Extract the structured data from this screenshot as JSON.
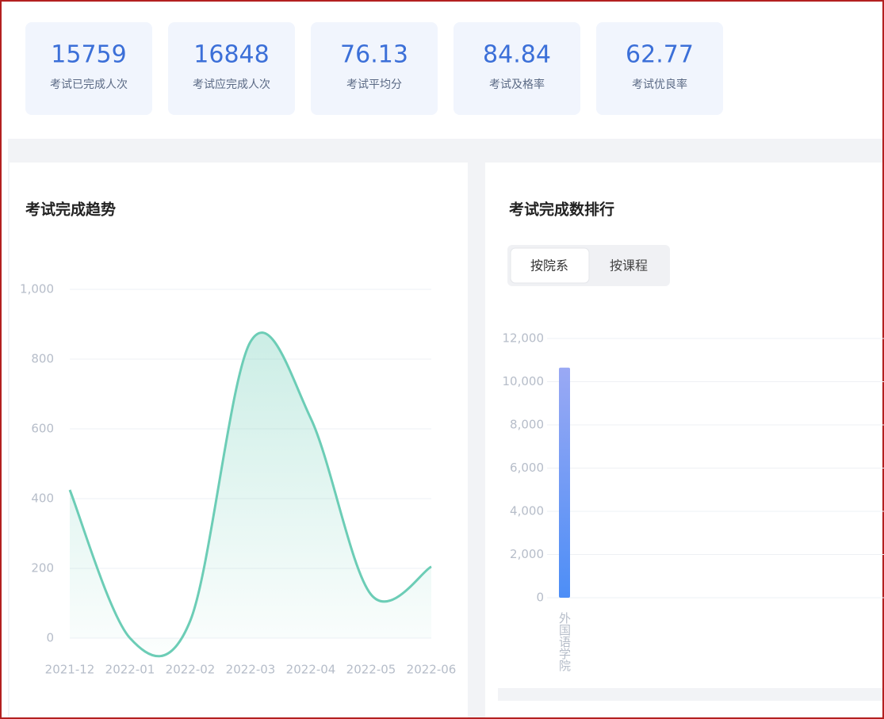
{
  "stats": [
    {
      "value": "15759",
      "label": "考试已完成人次"
    },
    {
      "value": "16848",
      "label": "考试应完成人次"
    },
    {
      "value": "76.13",
      "label": "考试平均分"
    },
    {
      "value": "84.84",
      "label": "考试及格率"
    },
    {
      "value": "62.77",
      "label": "考试优良率"
    }
  ],
  "tabs": [
    "按院系",
    "按课程"
  ],
  "chart_data": [
    {
      "type": "line",
      "title": "考试完成趋势",
      "categories": [
        "2021-12",
        "2022-01",
        "2022-02",
        "2022-03",
        "2022-04",
        "2022-05",
        "2022-06"
      ],
      "values": [
        425,
        0,
        50,
        850,
        630,
        125,
        205
      ],
      "color": "#6ccdb6",
      "ylim": [
        0,
        1000
      ],
      "yticks": [
        0,
        200,
        400,
        600,
        800,
        {
          "value": 1000,
          "label": "1,000"
        }
      ],
      "grid": true
    },
    {
      "type": "bar",
      "title": "考试完成数排行",
      "categories": [
        "外国语学院"
      ],
      "values": [
        10650
      ],
      "color": "#4d8ef6",
      "ylim": [
        0,
        12000
      ],
      "yticks": [
        0,
        {
          "value": 2000,
          "label": "2,000"
        },
        {
          "value": 4000,
          "label": "4,000"
        },
        {
          "value": 6000,
          "label": "6,000"
        },
        {
          "value": 8000,
          "label": "8,000"
        },
        {
          "value": 10000,
          "label": "10,000"
        },
        {
          "value": 12000,
          "label": "12,000"
        }
      ],
      "grid": true
    }
  ]
}
